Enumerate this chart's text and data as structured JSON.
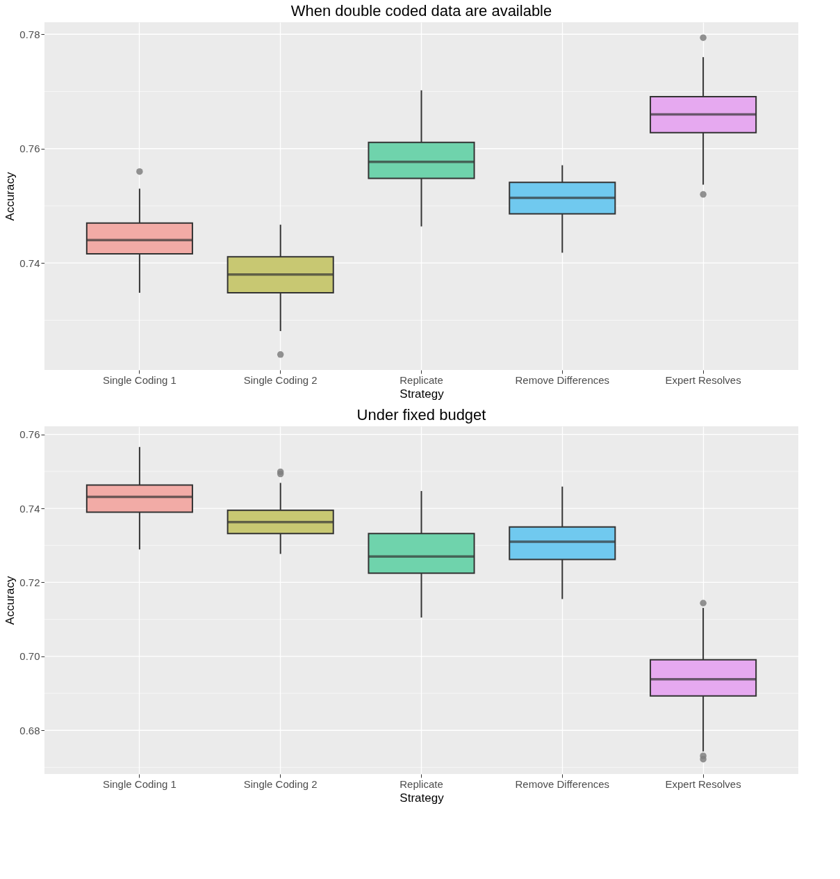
{
  "chart_data": [
    {
      "type": "box",
      "title": "When double coded data are available",
      "xlabel": "Strategy",
      "ylabel": "Accuracy",
      "categories": [
        "Single Coding 1",
        "Single Coding 2",
        "Replicate",
        "Remove Differences",
        "Expert Resolves"
      ],
      "colors": [
        "#f2aba6",
        "#c8c872",
        "#6fd3ac",
        "#70c9ef",
        "#e6a9f0"
      ],
      "boxes": [
        {
          "low": 0.7348,
          "q1": 0.7416,
          "median": 0.744,
          "q3": 0.747,
          "high": 0.753,
          "outliers": [
            0.756
          ]
        },
        {
          "low": 0.7281,
          "q1": 0.7348,
          "median": 0.738,
          "q3": 0.7411,
          "high": 0.7467,
          "outliers": [
            0.724
          ]
        },
        {
          "low": 0.7464,
          "q1": 0.7548,
          "median": 0.7577,
          "q3": 0.7611,
          "high": 0.7702
        },
        {
          "low": 0.7418,
          "q1": 0.7486,
          "median": 0.7514,
          "q3": 0.7541,
          "high": 0.7571
        },
        {
          "low": 0.7537,
          "q1": 0.7628,
          "median": 0.766,
          "q3": 0.7691,
          "high": 0.776,
          "outliers": [
            0.7794,
            0.752
          ]
        }
      ],
      "ylim": [
        0.7213,
        0.7821
      ],
      "yticks": [
        {
          "value": 0.73,
          "label": null
        },
        0.74,
        {
          "value": 0.75,
          "label": null
        },
        0.76,
        {
          "value": 0.77,
          "label": null
        },
        0.78
      ],
      "grid": true
    },
    {
      "type": "box",
      "title": "Under fixed budget",
      "xlabel": "Strategy",
      "ylabel": "Accuracy",
      "categories": [
        "Single Coding 1",
        "Single Coding 2",
        "Replicate",
        "Remove Differences",
        "Expert Resolves"
      ],
      "colors": [
        "#f2aba6",
        "#c8c872",
        "#6fd3ac",
        "#70c9ef",
        "#e6a9f0"
      ],
      "boxes": [
        {
          "low": 0.7289,
          "q1": 0.739,
          "median": 0.7431,
          "q3": 0.7463,
          "high": 0.7566
        },
        {
          "low": 0.7277,
          "q1": 0.7332,
          "median": 0.7363,
          "q3": 0.7395,
          "high": 0.7469,
          "outliers": [
            0.7499,
            0.7493
          ]
        },
        {
          "low": 0.7105,
          "q1": 0.7225,
          "median": 0.727,
          "q3": 0.7332,
          "high": 0.7447
        },
        {
          "low": 0.7155,
          "q1": 0.7262,
          "median": 0.731,
          "q3": 0.735,
          "high": 0.7459
        },
        {
          "low": 0.6743,
          "q1": 0.6893,
          "median": 0.6938,
          "q3": 0.6991,
          "high": 0.7131,
          "outliers": [
            0.7144,
            0.6731,
            0.6722
          ]
        }
      ],
      "ylim": [
        0.6682,
        0.7622
      ],
      "yticks": [
        {
          "value": 0.67,
          "label": null
        },
        0.68,
        {
          "value": 0.69,
          "label": null
        },
        {
          "value": 0.7,
          "label": "0.70"
        },
        {
          "value": 0.71,
          "label": null
        },
        0.72,
        {
          "value": 0.73,
          "label": null
        },
        0.74,
        {
          "value": 0.75,
          "label": null
        },
        0.76
      ],
      "grid": true
    }
  ]
}
